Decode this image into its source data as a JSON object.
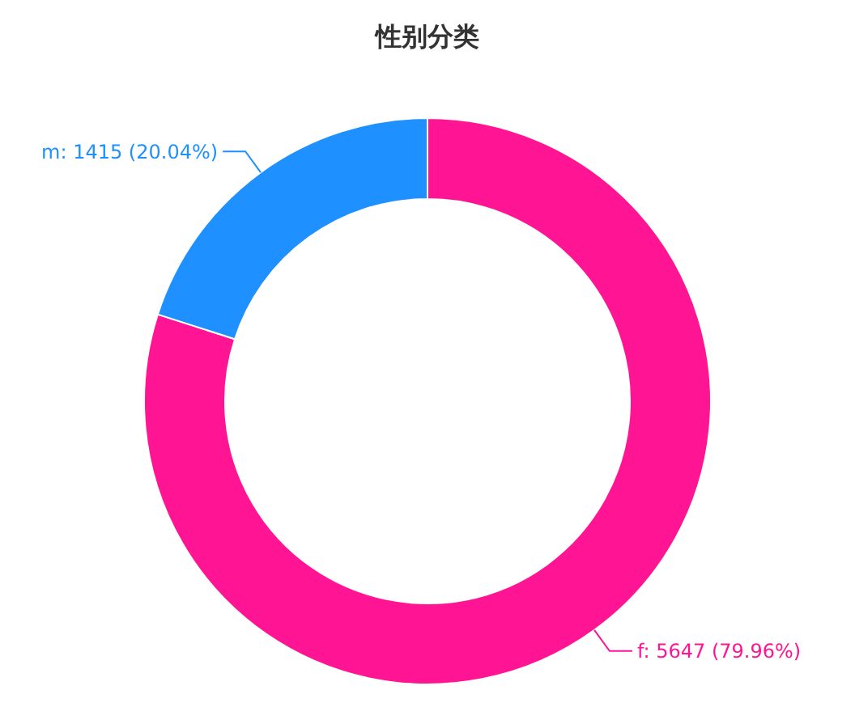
{
  "chart_data": {
    "type": "donut",
    "title": "性别分类",
    "categories": [
      "f",
      "m"
    ],
    "values": [
      5647,
      1415
    ],
    "colors": [
      "#ff1493",
      "#1e90ff"
    ],
    "value_labels": [
      ": 5647 (79.96%)",
      ": 1415 (20.04%)"
    ]
  }
}
